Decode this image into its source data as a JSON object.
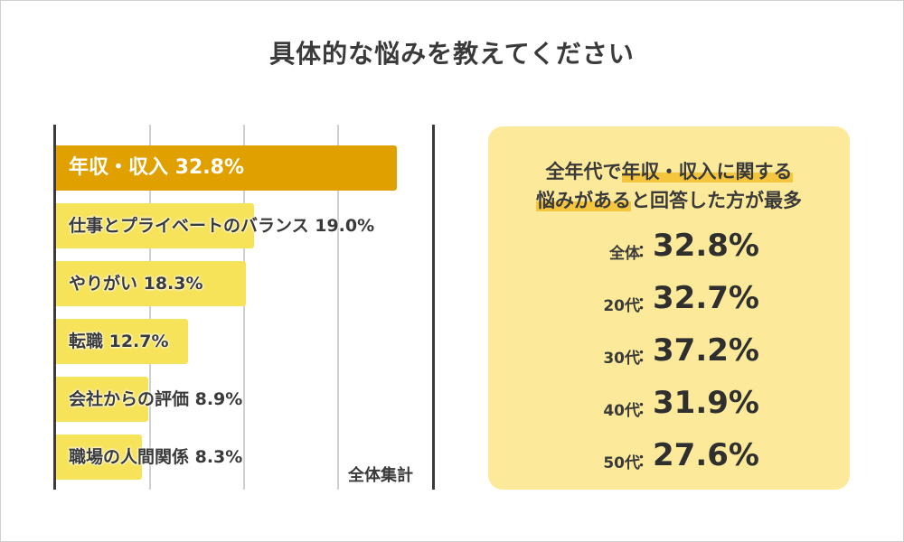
{
  "title": "具体的な悩みを教えてください",
  "chart_data": {
    "type": "bar",
    "orientation": "horizontal",
    "categories": [
      "年収・収入",
      "仕事とプライベートのバランス",
      "やりがい",
      "転職",
      "会社からの評価",
      "職場の人間関係"
    ],
    "values": [
      32.8,
      19.0,
      18.3,
      12.7,
      8.9,
      8.3
    ],
    "value_labels": [
      "32.8%",
      "19.0%",
      "18.3%",
      "12.7%",
      "8.9%",
      "8.3%"
    ],
    "label_text": [
      "年収・収入 32.8%",
      "仕事とプライベートのバランス 19.0%",
      "やりがい 18.3%",
      "転職 12.7%",
      "会社からの評価 8.9%",
      "職場の人間関係 8.3%"
    ],
    "xlim": [
      0,
      40
    ],
    "grid": true,
    "colors": {
      "highlight": "#e0a100",
      "bar": "#f6e35a"
    },
    "annotation": "全体集計"
  },
  "panel": {
    "headline_line1_pre": "全年代で",
    "headline_line1_hl": "年収・収入に関する",
    "headline_line2_hl": "悩みがある",
    "headline_line2_post": "と回答した方が最多",
    "colon": "：",
    "rows": [
      {
        "label": "全体",
        "value": "32.8%"
      },
      {
        "label": "20代",
        "value": "32.7%"
      },
      {
        "label": "30代",
        "value": "37.2%"
      },
      {
        "label": "40代",
        "value": "31.9%"
      },
      {
        "label": "50代",
        "value": "27.6%"
      }
    ],
    "colors": {
      "background": "#fce99a",
      "marker": "#f6c53e"
    }
  }
}
